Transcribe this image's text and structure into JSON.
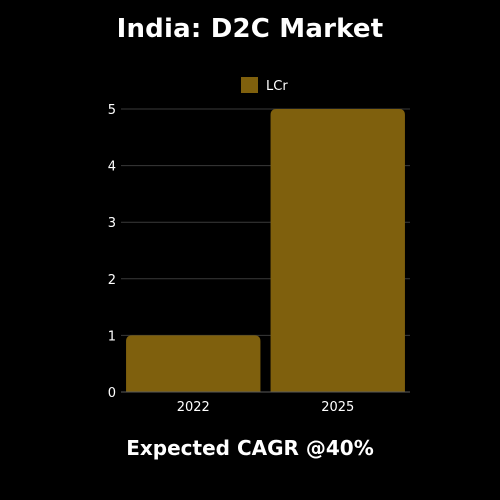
{
  "title": "India: D2C Market",
  "footer": "Expected CAGR @40%",
  "colors": {
    "background": "#000000",
    "bar": "#7f600d",
    "grid": "#3a3a3a",
    "text": "#ffffff"
  },
  "chart_data": {
    "type": "bar",
    "title": "India: D2C Market",
    "categories": [
      "2022",
      "2025"
    ],
    "series": [
      {
        "name": "LCr",
        "values": [
          1,
          5
        ]
      }
    ],
    "xlabel": "",
    "ylabel": "",
    "ylim": [
      0,
      5
    ],
    "yticks": [
      0,
      1,
      2,
      3,
      4,
      5
    ],
    "grid": true,
    "legend": "top-center"
  }
}
